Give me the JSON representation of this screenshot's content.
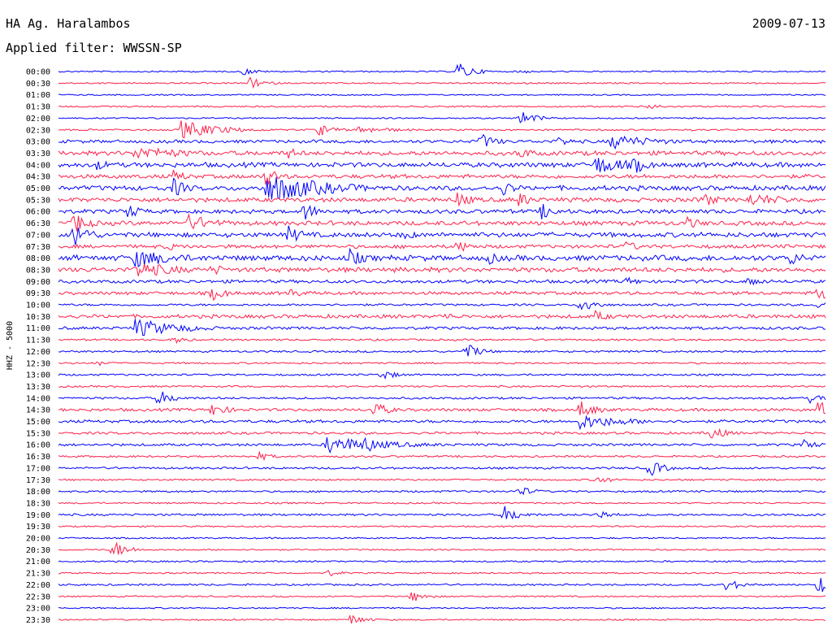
{
  "header": {
    "station": "HA Ag. Haralambos",
    "date": "2009-07-13",
    "filter": "Applied filter: WWSSN-SP"
  },
  "chart_data": {
    "type": "line",
    "title": "HA Ag. Haralambos",
    "subtitle": "Applied filter: WWSSN-SP",
    "ylabel": "HHZ - 5000",
    "xlabel": "",
    "grid": false,
    "legend": "none",
    "colors": [
      "#0000ff",
      "#ff1f4a"
    ],
    "trace_minutes": 30,
    "series": [
      {
        "name": "00:00",
        "activity": 0.05,
        "events": [
          {
            "t": 0.52,
            "amp": 1.0
          },
          {
            "t": 0.24,
            "amp": 0.4
          },
          {
            "t": 0.6,
            "amp": 0.25
          }
        ]
      },
      {
        "name": "00:30",
        "activity": 0.06,
        "events": [
          {
            "t": 0.25,
            "amp": 0.6
          }
        ]
      },
      {
        "name": "01:00",
        "activity": 0.04,
        "events": []
      },
      {
        "name": "01:30",
        "activity": 0.07,
        "events": [
          {
            "t": 0.77,
            "amp": 0.35
          }
        ]
      },
      {
        "name": "02:00",
        "activity": 0.05,
        "events": [
          {
            "t": 0.6,
            "amp": 0.9
          }
        ]
      },
      {
        "name": "02:30",
        "activity": 0.1,
        "events": [
          {
            "t": 0.16,
            "amp": 1.0,
            "dur": 0.05
          },
          {
            "t": 0.34,
            "amp": 0.7
          },
          {
            "t": 0.39,
            "amp": 0.4,
            "dur": 0.05
          }
        ]
      },
      {
        "name": "03:00",
        "activity": 0.3,
        "events": [
          {
            "t": 0.55,
            "amp": 0.9
          },
          {
            "t": 0.72,
            "amp": 0.8,
            "dur": 0.06
          },
          {
            "t": 0.65,
            "amp": 0.6
          }
        ]
      },
      {
        "name": "03:30",
        "activity": 0.45,
        "events": [
          {
            "t": 0.1,
            "amp": 0.7,
            "dur": 0.08
          },
          {
            "t": 0.3,
            "amp": 0.6
          },
          {
            "t": 0.6,
            "amp": 0.7
          }
        ]
      },
      {
        "name": "04:00",
        "activity": 0.5,
        "events": [
          {
            "t": 0.7,
            "amp": 1.0,
            "dur": 0.05
          },
          {
            "t": 0.75,
            "amp": 1.0
          },
          {
            "t": 0.05,
            "amp": 0.6
          }
        ]
      },
      {
        "name": "04:30",
        "activity": 0.4,
        "events": [
          {
            "t": 0.15,
            "amp": 0.7
          },
          {
            "t": 0.27,
            "amp": 1.0
          }
        ]
      },
      {
        "name": "05:00",
        "activity": 0.5,
        "events": [
          {
            "t": 0.27,
            "amp": 1.6,
            "dur": 0.08
          },
          {
            "t": 0.15,
            "amp": 1.0
          },
          {
            "t": 0.58,
            "amp": 0.8
          }
        ]
      },
      {
        "name": "05:30",
        "activity": 0.45,
        "events": [
          {
            "t": 0.52,
            "amp": 0.9
          },
          {
            "t": 0.6,
            "amp": 0.8
          },
          {
            "t": 0.9,
            "amp": 0.7,
            "dur": 0.06
          },
          {
            "t": 0.84,
            "amp": 0.8
          }
        ]
      },
      {
        "name": "06:00",
        "activity": 0.4,
        "events": [
          {
            "t": 0.09,
            "amp": 0.8
          },
          {
            "t": 0.32,
            "amp": 1.0
          },
          {
            "t": 0.63,
            "amp": 0.9
          }
        ]
      },
      {
        "name": "06:30",
        "activity": 0.45,
        "events": [
          {
            "t": 0.02,
            "amp": 1.2
          },
          {
            "t": 0.17,
            "amp": 0.9,
            "dur": 0.04
          },
          {
            "t": 0.82,
            "amp": 0.7
          }
        ]
      },
      {
        "name": "07:00",
        "activity": 0.5,
        "events": [
          {
            "t": 0.02,
            "amp": 1.6
          },
          {
            "t": 0.3,
            "amp": 1.0
          },
          {
            "t": 0.45,
            "amp": 0.6
          }
        ]
      },
      {
        "name": "07:30",
        "activity": 0.35,
        "events": [
          {
            "t": 0.52,
            "amp": 0.7
          },
          {
            "t": 0.74,
            "amp": 0.6
          },
          {
            "t": 0.14,
            "amp": 0.5
          }
        ]
      },
      {
        "name": "08:00",
        "activity": 0.6,
        "events": [
          {
            "t": 0.1,
            "amp": 1.0,
            "dur": 0.06
          },
          {
            "t": 0.38,
            "amp": 1.0
          },
          {
            "t": 0.95,
            "amp": 1.0
          },
          {
            "t": 0.56,
            "amp": 0.7
          }
        ]
      },
      {
        "name": "08:30",
        "activity": 0.5,
        "events": [
          {
            "t": 0.1,
            "amp": 0.9,
            "dur": 0.06
          },
          {
            "t": 0.2,
            "amp": 0.7
          }
        ]
      },
      {
        "name": "09:00",
        "activity": 0.3,
        "events": [
          {
            "t": 0.9,
            "amp": 0.6
          },
          {
            "t": 0.74,
            "amp": 0.5
          }
        ]
      },
      {
        "name": "09:30",
        "activity": 0.3,
        "events": [
          {
            "t": 0.2,
            "amp": 0.8
          },
          {
            "t": 0.99,
            "amp": 1.0
          },
          {
            "t": 0.3,
            "amp": 0.6
          }
        ]
      },
      {
        "name": "10:00",
        "activity": 0.15,
        "events": [
          {
            "t": 0.68,
            "amp": 1.0
          },
          {
            "t": 0.99,
            "amp": 0.7
          }
        ]
      },
      {
        "name": "10:30",
        "activity": 0.35,
        "events": [
          {
            "t": 0.7,
            "amp": 0.6
          },
          {
            "t": 0.5,
            "amp": 0.5
          }
        ]
      },
      {
        "name": "11:00",
        "activity": 0.25,
        "events": [
          {
            "t": 0.1,
            "amp": 1.0,
            "dur": 0.06
          }
        ]
      },
      {
        "name": "11:30",
        "activity": 0.12,
        "events": [
          {
            "t": 0.15,
            "amp": 0.4
          }
        ]
      },
      {
        "name": "12:00",
        "activity": 0.12,
        "events": [
          {
            "t": 0.53,
            "amp": 0.9
          }
        ]
      },
      {
        "name": "12:30",
        "activity": 0.1,
        "events": [
          {
            "t": 0.05,
            "amp": 0.3
          }
        ]
      },
      {
        "name": "13:00",
        "activity": 0.12,
        "events": [
          {
            "t": 0.42,
            "amp": 0.6
          }
        ]
      },
      {
        "name": "13:30",
        "activity": 0.1,
        "events": []
      },
      {
        "name": "14:00",
        "activity": 0.15,
        "events": [
          {
            "t": 0.13,
            "amp": 0.9
          },
          {
            "t": 0.98,
            "amp": 0.5
          }
        ]
      },
      {
        "name": "14:30",
        "activity": 0.25,
        "events": [
          {
            "t": 0.2,
            "amp": 0.8
          },
          {
            "t": 0.41,
            "amp": 0.9
          },
          {
            "t": 0.68,
            "amp": 1.0
          },
          {
            "t": 0.99,
            "amp": 1.0
          }
        ]
      },
      {
        "name": "15:00",
        "activity": 0.25,
        "events": [
          {
            "t": 0.68,
            "amp": 0.8,
            "dur": 0.06
          }
        ]
      },
      {
        "name": "15:30",
        "activity": 0.2,
        "events": [
          {
            "t": 0.85,
            "amp": 0.8
          }
        ]
      },
      {
        "name": "16:00",
        "activity": 0.2,
        "events": [
          {
            "t": 0.35,
            "amp": 0.9,
            "dur": 0.08
          },
          {
            "t": 0.4,
            "amp": 0.9
          },
          {
            "t": 0.97,
            "amp": 0.6
          }
        ]
      },
      {
        "name": "16:30",
        "activity": 0.12,
        "events": [
          {
            "t": 0.26,
            "amp": 0.5
          }
        ]
      },
      {
        "name": "17:00",
        "activity": 0.15,
        "events": [
          {
            "t": 0.77,
            "amp": 0.9
          }
        ]
      },
      {
        "name": "17:30",
        "activity": 0.1,
        "events": [
          {
            "t": 0.7,
            "amp": 0.5
          }
        ]
      },
      {
        "name": "18:00",
        "activity": 0.12,
        "events": [
          {
            "t": 0.6,
            "amp": 0.6
          }
        ]
      },
      {
        "name": "18:30",
        "activity": 0.08,
        "events": []
      },
      {
        "name": "19:00",
        "activity": 0.15,
        "events": [
          {
            "t": 0.58,
            "amp": 1.0
          },
          {
            "t": 0.7,
            "amp": 0.7
          }
        ]
      },
      {
        "name": "19:30",
        "activity": 0.06,
        "events": []
      },
      {
        "name": "20:00",
        "activity": 0.06,
        "events": []
      },
      {
        "name": "20:30",
        "activity": 0.06,
        "events": [
          {
            "t": 0.07,
            "amp": 1.0
          }
        ]
      },
      {
        "name": "21:00",
        "activity": 0.08,
        "events": []
      },
      {
        "name": "21:30",
        "activity": 0.06,
        "events": [
          {
            "t": 0.35,
            "amp": 0.4
          }
        ]
      },
      {
        "name": "22:00",
        "activity": 0.1,
        "events": [
          {
            "t": 0.87,
            "amp": 0.7
          },
          {
            "t": 0.99,
            "amp": 1.0
          }
        ]
      },
      {
        "name": "22:30",
        "activity": 0.06,
        "events": [
          {
            "t": 0.46,
            "amp": 0.6
          }
        ]
      },
      {
        "name": "23:00",
        "activity": 0.05,
        "events": []
      },
      {
        "name": "23:30",
        "activity": 0.05,
        "events": [
          {
            "t": 0.38,
            "amp": 0.6
          }
        ]
      }
    ]
  }
}
